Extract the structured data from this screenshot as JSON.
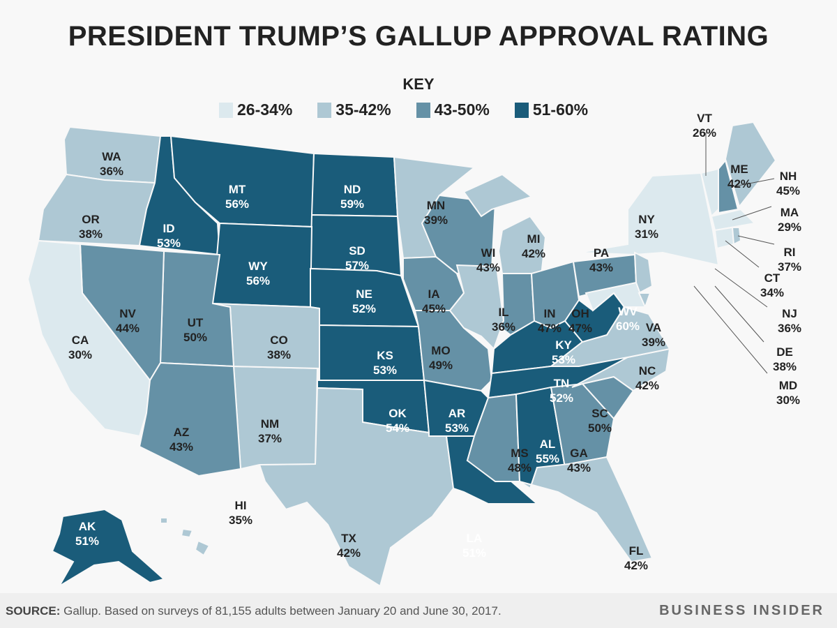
{
  "title": "PRESIDENT TRUMP’S GALLUP APPROVAL RATING",
  "legend": {
    "title": "KEY",
    "bins": [
      {
        "label": "26-34%",
        "color": "#dce9ee"
      },
      {
        "label": "35-42%",
        "color": "#aec8d4"
      },
      {
        "label": "43-50%",
        "color": "#6591a6"
      },
      {
        "label": "51-60%",
        "color": "#1a5c7a"
      }
    ]
  },
  "states": [
    {
      "abbr": "WA",
      "value": "36%",
      "bin": 1
    },
    {
      "abbr": "OR",
      "value": "38%",
      "bin": 1
    },
    {
      "abbr": "CA",
      "value": "30%",
      "bin": 0
    },
    {
      "abbr": "ID",
      "value": "53%",
      "bin": 3
    },
    {
      "abbr": "MT",
      "value": "56%",
      "bin": 3
    },
    {
      "abbr": "WY",
      "value": "56%",
      "bin": 3
    },
    {
      "abbr": "NV",
      "value": "44%",
      "bin": 2
    },
    {
      "abbr": "UT",
      "value": "50%",
      "bin": 2
    },
    {
      "abbr": "CO",
      "value": "38%",
      "bin": 1
    },
    {
      "abbr": "AZ",
      "value": "43%",
      "bin": 2
    },
    {
      "abbr": "NM",
      "value": "37%",
      "bin": 1
    },
    {
      "abbr": "ND",
      "value": "59%",
      "bin": 3
    },
    {
      "abbr": "SD",
      "value": "57%",
      "bin": 3
    },
    {
      "abbr": "NE",
      "value": "52%",
      "bin": 3
    },
    {
      "abbr": "KS",
      "value": "53%",
      "bin": 3
    },
    {
      "abbr": "OK",
      "value": "54%",
      "bin": 3
    },
    {
      "abbr": "TX",
      "value": "42%",
      "bin": 1
    },
    {
      "abbr": "MN",
      "value": "39%",
      "bin": 1
    },
    {
      "abbr": "IA",
      "value": "45%",
      "bin": 2
    },
    {
      "abbr": "MO",
      "value": "49%",
      "bin": 2
    },
    {
      "abbr": "AR",
      "value": "53%",
      "bin": 3
    },
    {
      "abbr": "LA",
      "value": "51%",
      "bin": 3
    },
    {
      "abbr": "WI",
      "value": "43%",
      "bin": 2
    },
    {
      "abbr": "IL",
      "value": "36%",
      "bin": 1
    },
    {
      "abbr": "MI",
      "value": "42%",
      "bin": 1
    },
    {
      "abbr": "IN",
      "value": "47%",
      "bin": 2
    },
    {
      "abbr": "OH",
      "value": "47%",
      "bin": 2
    },
    {
      "abbr": "KY",
      "value": "53%",
      "bin": 3
    },
    {
      "abbr": "TN",
      "value": "52%",
      "bin": 3
    },
    {
      "abbr": "MS",
      "value": "48%",
      "bin": 2
    },
    {
      "abbr": "AL",
      "value": "55%",
      "bin": 3
    },
    {
      "abbr": "GA",
      "value": "43%",
      "bin": 2
    },
    {
      "abbr": "SC",
      "value": "50%",
      "bin": 2
    },
    {
      "abbr": "NC",
      "value": "42%",
      "bin": 1
    },
    {
      "abbr": "VA",
      "value": "39%",
      "bin": 1
    },
    {
      "abbr": "WV",
      "value": "60%",
      "bin": 3
    },
    {
      "abbr": "PA",
      "value": "43%",
      "bin": 2
    },
    {
      "abbr": "NY",
      "value": "31%",
      "bin": 0
    },
    {
      "abbr": "FL",
      "value": "42%",
      "bin": 1
    },
    {
      "abbr": "AK",
      "value": "51%",
      "bin": 3
    },
    {
      "abbr": "HI",
      "value": "35%",
      "bin": 1
    },
    {
      "abbr": "VT",
      "value": "26%",
      "bin": 0
    },
    {
      "abbr": "ME",
      "value": "42%",
      "bin": 1
    },
    {
      "abbr": "NH",
      "value": "45%",
      "bin": 2
    },
    {
      "abbr": "MA",
      "value": "29%",
      "bin": 0
    },
    {
      "abbr": "RI",
      "value": "37%",
      "bin": 1
    },
    {
      "abbr": "CT",
      "value": "34%",
      "bin": 0
    },
    {
      "abbr": "NJ",
      "value": "36%",
      "bin": 1
    },
    {
      "abbr": "DE",
      "value": "38%",
      "bin": 1
    },
    {
      "abbr": "MD",
      "value": "30%",
      "bin": 0
    }
  ],
  "footer": {
    "source_label": "SOURCE:",
    "source_text": " Gallup. Based on surveys of 81,155 adults between January 20 and June 30, 2017.",
    "brand": "BUSINESS INSIDER"
  }
}
